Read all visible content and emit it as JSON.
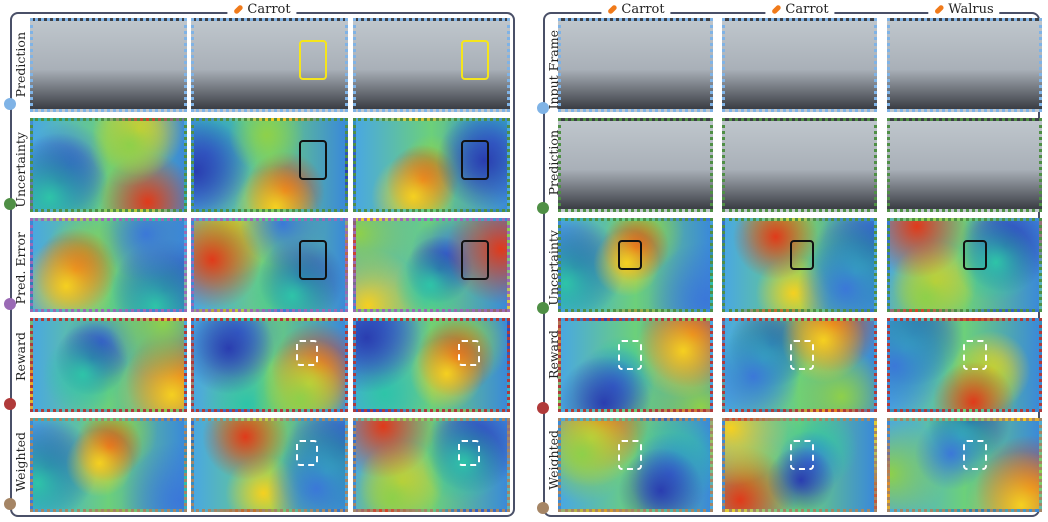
{
  "left": {
    "header": "Carrot",
    "rows": [
      "Prediction",
      "Uncertainty",
      "Pred. Error",
      "Reward",
      "Weighted"
    ]
  },
  "right": {
    "headers": [
      "Carrot",
      "Carrot",
      "Walrus"
    ],
    "rows": [
      "Input Frame",
      "Prediction",
      "Uncertainty",
      "Reward",
      "Weighted"
    ]
  }
}
